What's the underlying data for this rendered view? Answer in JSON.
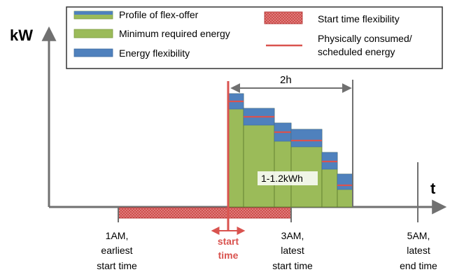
{
  "legend": {
    "items": [
      {
        "label": "Profile of flex-offer",
        "swatch": "profile"
      },
      {
        "label": "Minimum required energy",
        "swatch": "minimum"
      },
      {
        "label": "Energy flexibility",
        "swatch": "flexibility"
      },
      {
        "label": "Start time flexibility",
        "swatch": "start-flex"
      },
      {
        "label_lines": [
          "Physically consumed/",
          "scheduled energy"
        ],
        "swatch": "consumed"
      }
    ]
  },
  "axes": {
    "y_label": "kW",
    "x_label": "t"
  },
  "duration_label": "2h",
  "energy_label": "1-1.2kWh",
  "time_labels": [
    {
      "lines": [
        "1AM,",
        "earliest",
        "start time"
      ],
      "tone": "normal"
    },
    {
      "lines": [
        "start",
        "time"
      ],
      "tone": "highlight"
    },
    {
      "lines": [
        "3AM,",
        "latest",
        "start time"
      ],
      "tone": "normal"
    },
    {
      "lines": [
        "5AM,",
        "latest",
        "end time"
      ],
      "tone": "normal"
    }
  ],
  "colors": {
    "green": "#9bbb59",
    "blue": "#4f81bd",
    "red": "#d9534f",
    "dark_red": "#c0504d",
    "axis": "#707070",
    "text": "#000000"
  }
}
